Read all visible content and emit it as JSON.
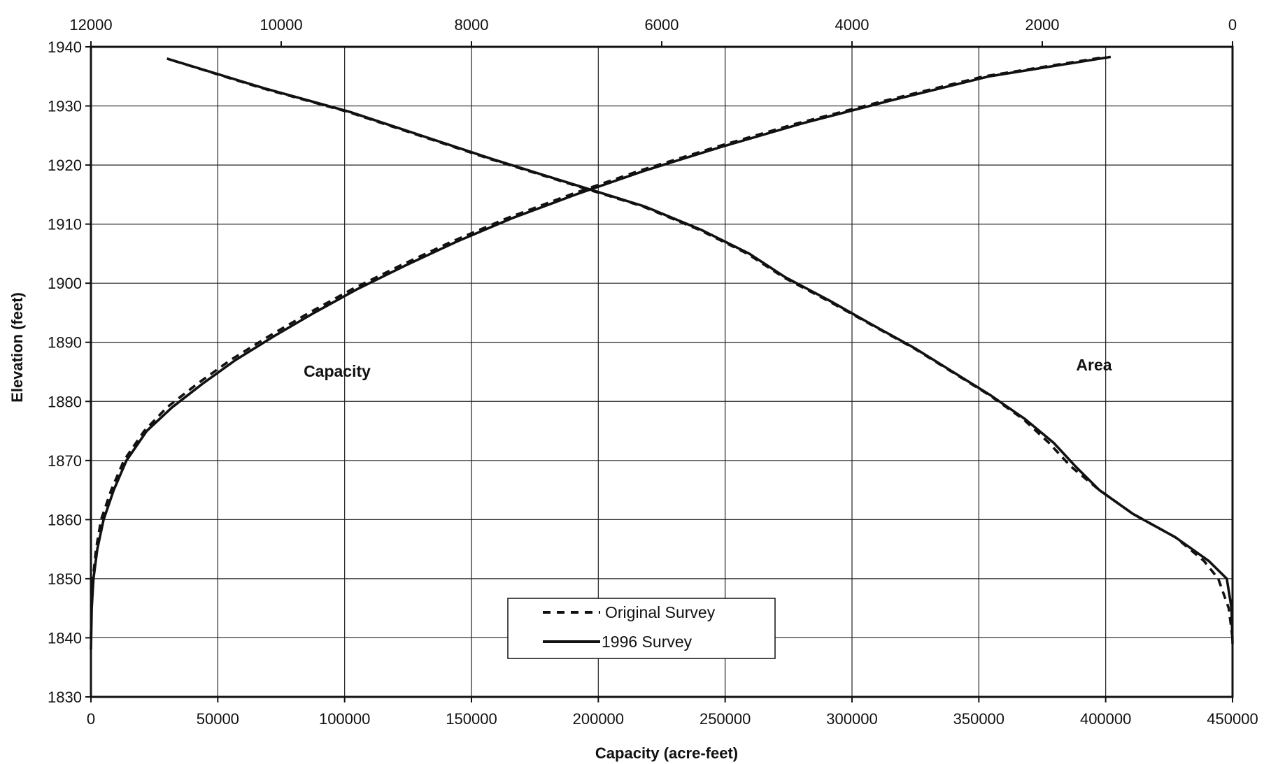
{
  "chart_data": {
    "type": "line",
    "title": "",
    "xlabel": "Capacity (acre-feet)",
    "ylabel": "Elevation (feet)",
    "x2label": "",
    "xlim": [
      0,
      450000
    ],
    "x2lim": [
      12000,
      0
    ],
    "ylim": [
      1830,
      1940
    ],
    "x_ticks": [
      0,
      50000,
      100000,
      150000,
      200000,
      250000,
      300000,
      350000,
      400000,
      450000
    ],
    "x2_ticks": [
      12000,
      10000,
      8000,
      6000,
      4000,
      2000,
      0
    ],
    "y_ticks": [
      1830,
      1840,
      1850,
      1860,
      1870,
      1880,
      1890,
      1900,
      1910,
      1920,
      1930,
      1940
    ],
    "grid": true,
    "legend_placement": "bottom-center",
    "legend": [
      {
        "label": "Original Survey",
        "style": "dashed"
      },
      {
        "label": "1996 Survey",
        "style": "solid"
      }
    ],
    "annotations": {
      "capacity": "Capacity",
      "area": "Area"
    },
    "series": [
      {
        "curve": "capacity",
        "survey": "original",
        "style": "dashed",
        "axis": "bottom",
        "points": [
          [
            0,
            1840
          ],
          [
            200,
            1845
          ],
          [
            800,
            1850
          ],
          [
            2000,
            1855
          ],
          [
            4000,
            1860
          ],
          [
            8000,
            1865
          ],
          [
            13000,
            1870
          ],
          [
            21000,
            1875
          ],
          [
            30000,
            1879
          ],
          [
            42000,
            1883
          ],
          [
            55000,
            1887
          ],
          [
            70000,
            1891
          ],
          [
            86000,
            1895
          ],
          [
            103000,
            1899
          ],
          [
            122000,
            1903
          ],
          [
            142000,
            1907
          ],
          [
            164000,
            1911
          ],
          [
            189000,
            1915
          ],
          [
            216000,
            1919
          ],
          [
            246000,
            1923
          ],
          [
            278000,
            1927
          ],
          [
            314000,
            1931
          ],
          [
            352000,
            1935
          ],
          [
            400000,
            1938.3
          ]
        ]
      },
      {
        "curve": "capacity",
        "survey": "1996",
        "style": "solid",
        "axis": "bottom",
        "points": [
          [
            0,
            1838
          ],
          [
            300,
            1845
          ],
          [
            1000,
            1850
          ],
          [
            2500,
            1855
          ],
          [
            5000,
            1860
          ],
          [
            9000,
            1865
          ],
          [
            14000,
            1870
          ],
          [
            22000,
            1875
          ],
          [
            32000,
            1879
          ],
          [
            44000,
            1883
          ],
          [
            57000,
            1887
          ],
          [
            72000,
            1891
          ],
          [
            88000,
            1895
          ],
          [
            105000,
            1899
          ],
          [
            124000,
            1903
          ],
          [
            144000,
            1907
          ],
          [
            166000,
            1911
          ],
          [
            191000,
            1915
          ],
          [
            218000,
            1919
          ],
          [
            248000,
            1923
          ],
          [
            280000,
            1927
          ],
          [
            316000,
            1931
          ],
          [
            354000,
            1935
          ],
          [
            402000,
            1938.3
          ]
        ]
      },
      {
        "curve": "area",
        "survey": "original",
        "style": "dashed",
        "axis": "top",
        "points": [
          [
            0,
            1840
          ],
          [
            40,
            1845
          ],
          [
            150,
            1850
          ],
          [
            300,
            1853
          ],
          [
            600,
            1857
          ],
          [
            1050,
            1861
          ],
          [
            1400,
            1865
          ],
          [
            1700,
            1869
          ],
          [
            1930,
            1873
          ],
          [
            2200,
            1877
          ],
          [
            2550,
            1881
          ],
          [
            2950,
            1885
          ],
          [
            3350,
            1889
          ],
          [
            3800,
            1893
          ],
          [
            4250,
            1897
          ],
          [
            4720,
            1901
          ],
          [
            5100,
            1905
          ],
          [
            5600,
            1909
          ],
          [
            6200,
            1913
          ],
          [
            7000,
            1917
          ],
          [
            7800,
            1921
          ],
          [
            8550,
            1925
          ],
          [
            9300,
            1929
          ],
          [
            10200,
            1933
          ],
          [
            11200,
            1938
          ]
        ]
      },
      {
        "curve": "area",
        "survey": "1996",
        "style": "solid",
        "axis": "top",
        "points": [
          [
            0,
            1839
          ],
          [
            10,
            1845
          ],
          [
            60,
            1850
          ],
          [
            250,
            1853
          ],
          [
            600,
            1857
          ],
          [
            1050,
            1861
          ],
          [
            1400,
            1865
          ],
          [
            1650,
            1869
          ],
          [
            1880,
            1873
          ],
          [
            2180,
            1877
          ],
          [
            2540,
            1881
          ],
          [
            2940,
            1885
          ],
          [
            3340,
            1889
          ],
          [
            3790,
            1893
          ],
          [
            4230,
            1897
          ],
          [
            4700,
            1901
          ],
          [
            5080,
            1905
          ],
          [
            5580,
            1909
          ],
          [
            6180,
            1913
          ],
          [
            6980,
            1917
          ],
          [
            7780,
            1921
          ],
          [
            8530,
            1925
          ],
          [
            9280,
            1929
          ],
          [
            10180,
            1933
          ],
          [
            11200,
            1938
          ]
        ]
      }
    ]
  }
}
